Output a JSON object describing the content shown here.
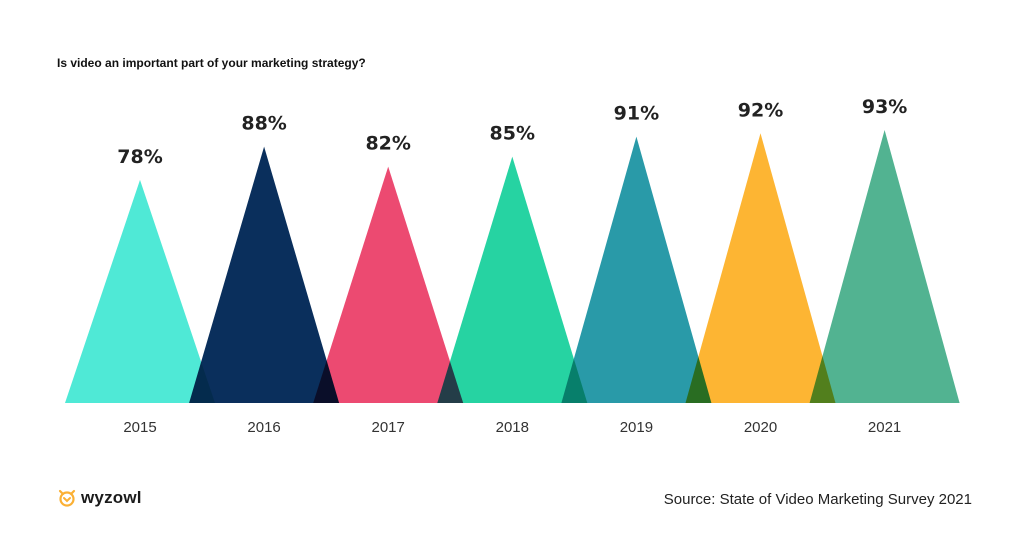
{
  "chart_data": {
    "type": "bar",
    "title": "Is video an important part of your marketing strategy?",
    "categories": [
      "2015",
      "2016",
      "2017",
      "2018",
      "2019",
      "2020",
      "2021"
    ],
    "values": [
      78,
      88,
      82,
      85,
      91,
      92,
      93
    ],
    "value_labels": [
      "78%",
      "88%",
      "82%",
      "85%",
      "91%",
      "92%",
      "93%"
    ],
    "colors": [
      "#4fe9d6",
      "#0a2f5c",
      "#ec4a71",
      "#26d3a2",
      "#299aa8",
      "#fdb533",
      "#52b391"
    ],
    "mark_shape": "triangle",
    "grid": false,
    "legend": "none"
  },
  "footer": {
    "logo": "wyzowl",
    "logo_color": "#fbb034",
    "source": "Source: State of Video Marketing Survey 2021"
  }
}
